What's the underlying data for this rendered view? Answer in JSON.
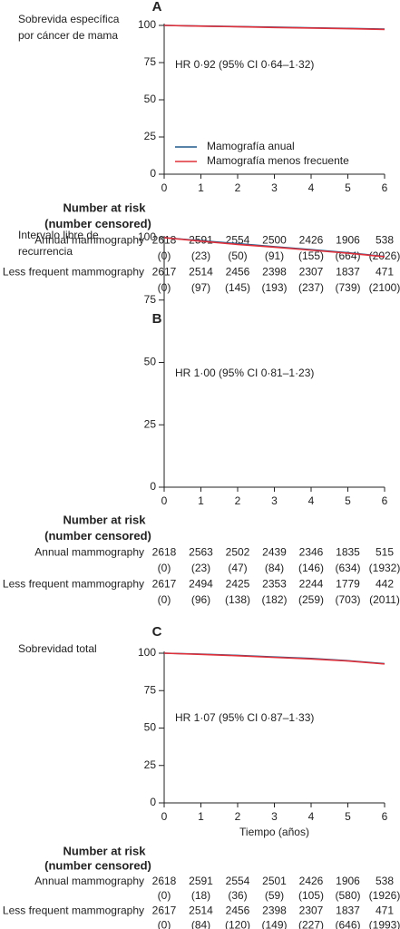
{
  "chart_data": [
    {
      "type": "line",
      "panel_label": "A",
      "ylabel_lines": [
        "Sobrevida específica",
        "por cáncer de mama"
      ],
      "annotation": "HR 0·92 (95% CI 0·64–1·32)",
      "x": [
        0,
        1,
        2,
        3,
        4,
        5,
        6
      ],
      "xlim": [
        0,
        6
      ],
      "xticks": [
        0,
        1,
        2,
        3,
        4,
        5,
        6
      ],
      "ylim": [
        0,
        100
      ],
      "yticks": [
        0,
        25,
        50,
        75,
        100
      ],
      "legend": "bottom-left",
      "series": [
        {
          "name": "Mamografía anual",
          "color": "#1f5a8a",
          "values": [
            100,
            99.6,
            99.2,
            98.8,
            98.4,
            98,
            97.5
          ]
        },
        {
          "name": "Mamografía menos frecuente",
          "color": "#e0303a",
          "values": [
            100,
            99.5,
            99.1,
            98.6,
            98.2,
            97.8,
            97.3
          ]
        }
      ]
    },
    {
      "type": "line",
      "panel_label": "B",
      "ylabel_lines": [
        "Intervalo libre de",
        "recurrencia"
      ],
      "annotation": "HR 1·00 (95% CI 0·81–1·23)",
      "x": [
        0,
        1,
        2,
        3,
        4,
        5,
        6
      ],
      "xlim": [
        0,
        6
      ],
      "xticks": [
        0,
        1,
        2,
        3,
        4,
        5,
        6
      ],
      "ylim": [
        0,
        100
      ],
      "yticks": [
        0,
        25,
        50,
        75,
        100
      ],
      "series": [
        {
          "color": "#1f5a8a",
          "values": [
            100,
            98.8,
            97.6,
            96.4,
            95.2,
            94,
            92.5
          ]
        },
        {
          "color": "#e0303a",
          "values": [
            100,
            98.6,
            97.3,
            96.2,
            95,
            93.8,
            92.4
          ]
        }
      ]
    },
    {
      "type": "line",
      "panel_label": "C",
      "ylabel_lines": [
        "Sobrevidad total"
      ],
      "annotation": "HR 1·07 (95% CI 0·87–1·33)",
      "xlabel": "Tiempo (años)",
      "x": [
        0,
        1,
        2,
        3,
        4,
        5,
        6
      ],
      "xlim": [
        0,
        6
      ],
      "xticks": [
        0,
        1,
        2,
        3,
        4,
        5,
        6
      ],
      "ylim": [
        0,
        100
      ],
      "yticks": [
        0,
        25,
        50,
        75,
        100
      ],
      "series": [
        {
          "color": "#1f5a8a",
          "values": [
            100,
            99.4,
            98.5,
            97.5,
            96.5,
            95,
            93
          ]
        },
        {
          "color": "#e0303a",
          "values": [
            100,
            99.2,
            98.3,
            97.2,
            96.2,
            94.8,
            92.8
          ]
        }
      ]
    }
  ],
  "risk_tables": [
    {
      "title": "Number at risk",
      "subtitle": "(number censored)",
      "rows": [
        {
          "label": "Annual mammography",
          "at_risk": [
            2618,
            2591,
            2554,
            2500,
            2426,
            1906,
            538
          ],
          "censored": [
            "(0)",
            "(23)",
            "(50)",
            "(91)",
            "(155)",
            "(664)",
            "(2026)"
          ]
        },
        {
          "label": "Less frequent mammography",
          "at_risk": [
            2617,
            2514,
            2456,
            2398,
            2307,
            1837,
            471
          ],
          "censored": [
            "(0)",
            "(97)",
            "(145)",
            "(193)",
            "(237)",
            "(739)",
            "(2100)"
          ]
        }
      ]
    },
    {
      "title": "Number at risk",
      "subtitle": "(number censored)",
      "rows": [
        {
          "label": "Annual mammography",
          "at_risk": [
            2618,
            2563,
            2502,
            2439,
            2346,
            1835,
            515
          ],
          "censored": [
            "(0)",
            "(23)",
            "(47)",
            "(84)",
            "(146)",
            "(634)",
            "(1932)"
          ]
        },
        {
          "label": "Less frequent mammography",
          "at_risk": [
            2617,
            2494,
            2425,
            2353,
            2244,
            1779,
            442
          ],
          "censored": [
            "(0)",
            "(96)",
            "(138)",
            "(182)",
            "(259)",
            "(703)",
            "(2011)"
          ]
        }
      ]
    },
    {
      "title": "Number at risk",
      "subtitle": "(number censored)",
      "rows": [
        {
          "label": "Annual mammography",
          "at_risk": [
            2618,
            2591,
            2554,
            2501,
            2426,
            1906,
            538
          ],
          "censored": [
            "(0)",
            "(18)",
            "(36)",
            "(59)",
            "(105)",
            "(580)",
            "(1926)"
          ]
        },
        {
          "label": "Less frequent mammography",
          "at_risk": [
            2617,
            2514,
            2456,
            2398,
            2307,
            1837,
            471
          ],
          "censored": [
            "(0)",
            "(84)",
            "(120)",
            "(149)",
            "(227)",
            "(646)",
            "(1993)"
          ]
        }
      ]
    }
  ]
}
